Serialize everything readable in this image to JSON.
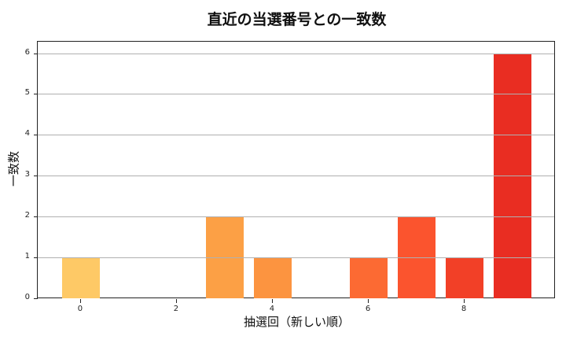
{
  "chart_data": {
    "type": "bar",
    "title": "直近の当選番号との一致数",
    "xlabel": "抽選回（新しい順）",
    "ylabel": "一致数",
    "x": [
      0,
      1,
      2,
      3,
      4,
      5,
      6,
      7,
      8,
      9
    ],
    "values": [
      1,
      0,
      0,
      2,
      1,
      0,
      1,
      2,
      1,
      6
    ],
    "colors": [
      "#fec966",
      "#feb14c",
      "#fda847",
      "#fca045",
      "#fc9440",
      "#fc7f38",
      "#fc6a33",
      "#fb542e",
      "#f24027",
      "#e92d22"
    ],
    "xticks": [
      "0",
      "2",
      "4",
      "6",
      "8"
    ],
    "yticks": [
      "0",
      "1",
      "2",
      "3",
      "4",
      "5",
      "6"
    ],
    "xlim": [
      -0.9,
      9.9
    ],
    "ylim": [
      0,
      6.3
    ],
    "grid": "y",
    "legend": null
  }
}
